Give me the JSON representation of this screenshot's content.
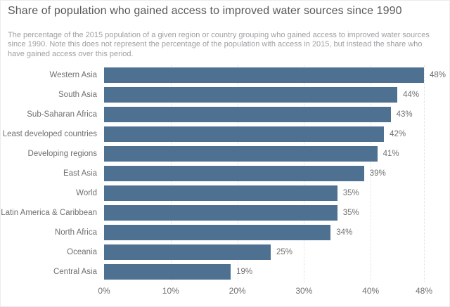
{
  "title": "Share of population who gained access to improved water sources since 1990",
  "subtitle": "The percentage of the 2015 population of a given region or country grouping who gained access to improved water sources since 1990. Note this does not represent the percentage of the population with access in 2015, but instead the share who have gained access over this period.",
  "colors": {
    "bar": "#4e7191",
    "title_text": "#58595b",
    "subtitle_text": "#9ea0a2",
    "axis_text": "#6f7072",
    "gridline": "#e0e0e0",
    "background": "#ffffff",
    "border": "#ececec"
  },
  "chart_data": {
    "type": "bar",
    "orientation": "horizontal",
    "title": "Share of population who gained access to improved water sources since 1990",
    "categories": [
      "Western Asia",
      "South Asia",
      "Sub-Saharan Africa",
      "Least developed countries",
      "Developing regions",
      "East Asia",
      "World",
      "Latin America & Caribbean",
      "North Africa",
      "Oceania",
      "Central Asia"
    ],
    "values": [
      48,
      44,
      43,
      42,
      41,
      39,
      35,
      35,
      34,
      25,
      19
    ],
    "value_labels": [
      "48%",
      "44%",
      "43%",
      "42%",
      "41%",
      "39%",
      "35%",
      "35%",
      "34%",
      "25%",
      "19%"
    ],
    "xlabel": "",
    "ylabel": "",
    "xlim": [
      0,
      48
    ],
    "xticks": [
      0,
      10,
      20,
      30,
      40,
      48
    ],
    "xtick_labels": [
      "0%",
      "10%",
      "20%",
      "30%",
      "40%",
      "48%"
    ],
    "grid": "vertical-dotted",
    "legend": "none"
  }
}
